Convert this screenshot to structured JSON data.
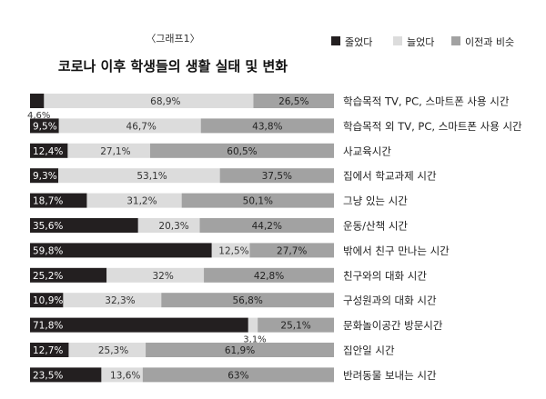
{
  "chart_data": {
    "type": "bar",
    "stacked": "100%",
    "orientation": "horizontal",
    "label": "〈그래프1〉",
    "title": "코로나 이후 학생들의 생활 실태 및 변화",
    "legend_position": "top-right",
    "colors": {
      "줄었다": "#231f20",
      "늘었다": "#dcdcdc",
      "이전과 비슷": "#a2a2a2"
    },
    "series": [
      {
        "name": "줄었다",
        "values": [
          4.6,
          9.5,
          12.4,
          9.3,
          18.7,
          35.6,
          59.8,
          25.2,
          10.9,
          71.8,
          12.7,
          23.5
        ],
        "labels": [
          "4,6%",
          "9,5%",
          "12,4%",
          "9,3%",
          "18,7%",
          "35,6%",
          "59,8%",
          "25,2%",
          "10,9%",
          "71,8%",
          "12,7%",
          "23,5%"
        ]
      },
      {
        "name": "늘었다",
        "values": [
          68.9,
          46.7,
          27.1,
          53.1,
          31.2,
          20.3,
          12.5,
          32,
          32.3,
          3.1,
          25.3,
          13.6
        ],
        "labels": [
          "68,9%",
          "46,7%",
          "27,1%",
          "53,1%",
          "31,2%",
          "20,3%",
          "12,5%",
          "32%",
          "32,3%",
          "3,1%",
          "25,3%",
          "13,6%"
        ]
      },
      {
        "name": "이전과 비슷",
        "values": [
          26.5,
          43.8,
          60.5,
          37.5,
          50.1,
          44.2,
          27.7,
          42.8,
          56.8,
          25.1,
          61.9,
          63
        ],
        "labels": [
          "26,5%",
          "43,8%",
          "60,5%",
          "37,5%",
          "50,1%",
          "44,2%",
          "27,7%",
          "42,8%",
          "56,8%",
          "25,1%",
          "61,9%",
          "63%"
        ]
      }
    ],
    "categories": [
      "학습목적 TV, PC, 스마트폰 사용 시간",
      "학습목적 외 TV, PC, 스마트폰 사용 시간",
      "사교육시간",
      "집에서 학교과제 시간",
      "그냥 있는 시간",
      "운동/산책 시간",
      "밖에서 친구 만나는 시간",
      "친구와의 대화 시간",
      "구성원과의 대화 시간",
      "문화놀이공간 방문시간",
      "집안일 시간",
      "반려동물 보내는 시간"
    ],
    "xlim": [
      0,
      100
    ],
    "grid": false
  }
}
